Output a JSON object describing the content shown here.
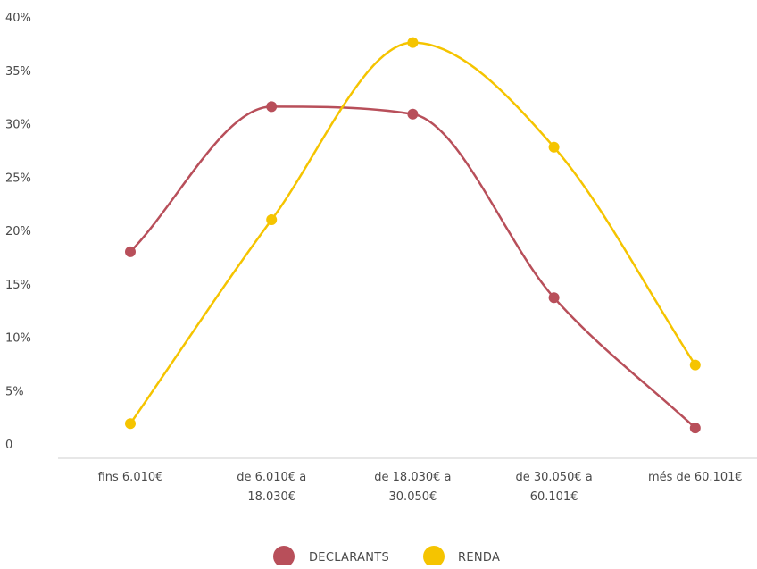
{
  "chart_data": {
    "type": "line",
    "title": "",
    "xlabel": "",
    "ylabel": "",
    "categories": [
      [
        "fins 6.010€"
      ],
      [
        "de 6.010€ a",
        "18.030€"
      ],
      [
        "de 18.030€ a",
        "30.050€"
      ],
      [
        "de 30.050€ a",
        "60.101€"
      ],
      [
        "més de 60.101€"
      ]
    ],
    "y_ticks": [
      "0",
      "5%",
      "10%",
      "15%",
      "20%",
      "25%",
      "30%",
      "35%",
      "40%"
    ],
    "ylim": [
      0,
      40
    ],
    "grid": false,
    "legend_position": "bottom-center",
    "series": [
      {
        "name": "DECLARANTS",
        "color": "#b84f5a",
        "values": [
          18.0,
          31.6,
          30.9,
          13.7,
          1.5
        ]
      },
      {
        "name": "RENDA",
        "color": "#f5c400",
        "values": [
          1.9,
          21.0,
          37.6,
          27.8,
          7.4
        ]
      }
    ]
  }
}
